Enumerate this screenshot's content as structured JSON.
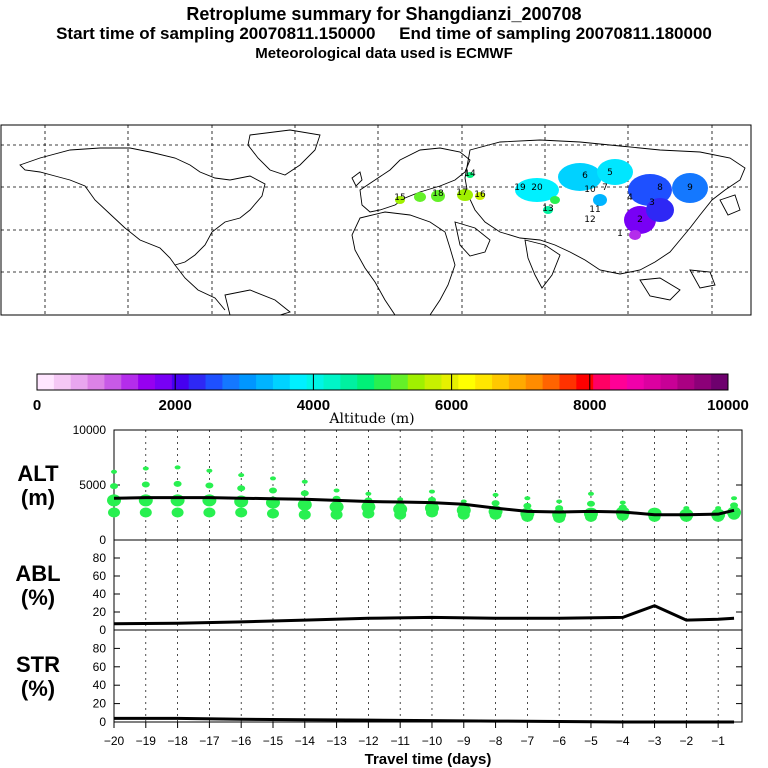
{
  "titles": {
    "line1": "Retroplume summary for Shangdianzi_200708",
    "line2": "Start time of sampling 20070811.150000     End time of sampling 20070811.180000",
    "line3": "Meteorological data used is ECMWF"
  },
  "colorbar": {
    "label": "Altitude (m)",
    "ticks": [
      "0",
      "2000",
      "4000",
      "6000",
      "8000",
      "10000"
    ],
    "colors": [
      "#ffe6ff",
      "#f5c8f5",
      "#e9a6ef",
      "#dc82e6",
      "#c85ae6",
      "#b42deb",
      "#9600f0",
      "#7800f5",
      "#4600f0",
      "#2e28f5",
      "#1e50ff",
      "#1478ff",
      "#0096ff",
      "#00b4ff",
      "#00d2ff",
      "#00f0ff",
      "#00f5e6",
      "#00f5c8",
      "#00f0a0",
      "#00f078",
      "#28f050",
      "#64f028",
      "#a0f000",
      "#c8f000",
      "#e6f000",
      "#ffff00",
      "#ffe600",
      "#ffc800",
      "#ffaa00",
      "#ff8c00",
      "#ff6400",
      "#ff3200",
      "#ff0000",
      "#ff0064",
      "#ff0096",
      "#f000aa",
      "#dc00a0",
      "#c80096",
      "#aa0082",
      "#8c0078",
      "#6e006e"
    ]
  },
  "map": {
    "name": "world retroplume map",
    "track_labels": [
      "1",
      "2",
      "3",
      "4",
      "5",
      "6",
      "7",
      "8",
      "9",
      "10",
      "11",
      "12",
      "13",
      "14",
      "15",
      "16",
      "17",
      "18",
      "19",
      "20"
    ]
  },
  "chart_data": [
    {
      "type": "line",
      "name": "ALT",
      "ylabel": "ALT\n(m)",
      "x": [
        -20,
        -19,
        -18,
        -17,
        -16,
        -15,
        -14,
        -13,
        -12,
        -11,
        -10,
        -9,
        -8,
        -7,
        -6,
        -5,
        -4,
        -3,
        -2,
        -1,
        -0.5
      ],
      "values": [
        3800,
        3850,
        3850,
        3850,
        3800,
        3750,
        3700,
        3600,
        3500,
        3450,
        3400,
        3250,
        2900,
        2600,
        2550,
        2600,
        2550,
        2300,
        2300,
        2350,
        2700
      ],
      "scatter_max": [
        6200,
        6500,
        6600,
        6300,
        5900,
        5600,
        5300,
        4500,
        4200,
        3700,
        4400,
        3500,
        4100,
        3800,
        3500,
        4200,
        3400,
        2700,
        2900,
        2900,
        3800
      ],
      "scatter_mid": [
        3600,
        3600,
        3600,
        3600,
        3500,
        3400,
        3200,
        3000,
        3000,
        2800,
        2900,
        2700,
        2600,
        2400,
        2300,
        2400,
        2500,
        2400,
        2300,
        2300,
        2500
      ],
      "scatter_min": [
        2500,
        2500,
        2500,
        2500,
        2500,
        2400,
        2300,
        2300,
        2400,
        2300,
        2500,
        2300,
        2300,
        2100,
        2000,
        2100,
        2200,
        2100,
        2100,
        2100,
        2300
      ],
      "ylim": [
        0,
        10000
      ],
      "yticks": [
        "0",
        "5000",
        "10000"
      ]
    },
    {
      "type": "line",
      "name": "ABL",
      "ylabel": "ABL\n(%)",
      "x": [
        -20,
        -18,
        -16,
        -14,
        -12,
        -10,
        -8,
        -6,
        -4,
        -3,
        -2,
        -1,
        -0.5
      ],
      "values": [
        7,
        7.5,
        9,
        11,
        13,
        14,
        13,
        13,
        14,
        27,
        11,
        12,
        13
      ],
      "ylim": [
        0,
        100
      ],
      "yticks": [
        "0",
        "20",
        "40",
        "60",
        "80"
      ]
    },
    {
      "type": "line",
      "name": "STR",
      "ylabel": "STR\n(%)",
      "x": [
        -20,
        -18,
        -16,
        -14,
        -12,
        -10,
        -8,
        -6,
        -4,
        -2,
        -0.5
      ],
      "values": [
        4,
        4,
        3,
        2.5,
        2,
        1.5,
        1,
        0.5,
        0,
        0,
        0
      ],
      "ylim": [
        0,
        100
      ],
      "yticks": [
        "0",
        "20",
        "40",
        "60",
        "80"
      ]
    }
  ],
  "xaxis": {
    "label": "Travel time (days)",
    "ticks": [
      "−20",
      "−19",
      "−18",
      "−17",
      "−16",
      "−15",
      "−14",
      "−13",
      "−12",
      "−11",
      "−10",
      "−9",
      "−8",
      "−7",
      "−6",
      "−5",
      "−4",
      "−3",
      "−2",
      "−1"
    ]
  }
}
